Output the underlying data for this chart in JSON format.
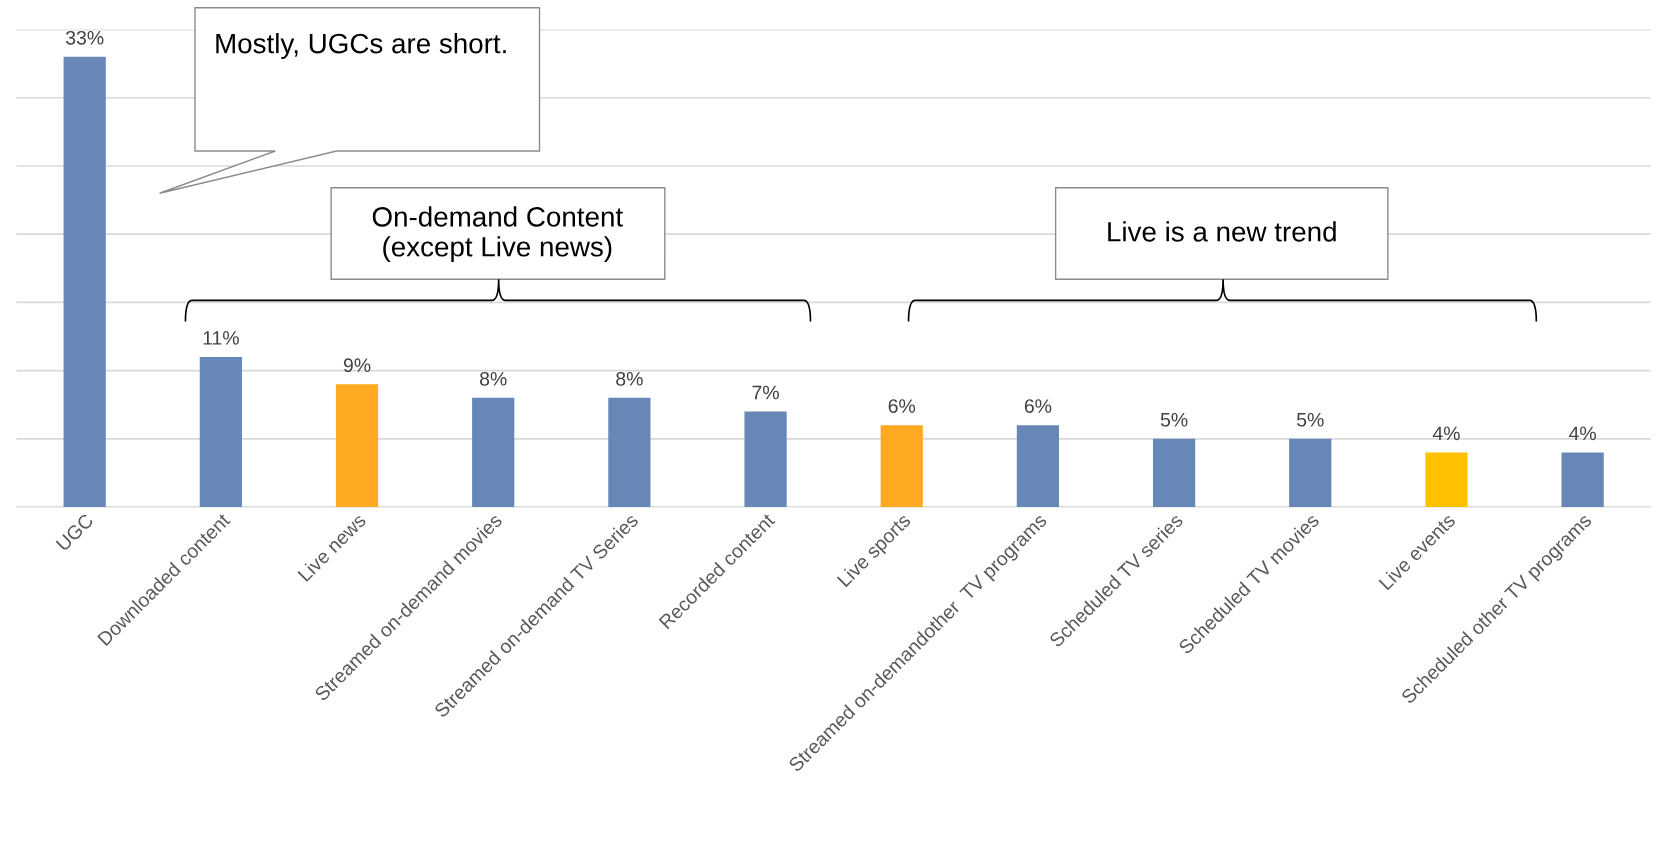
{
  "chart_data": {
    "type": "bar",
    "categories": [
      "UGC",
      "Downloaded content",
      "Live news",
      "Streamed on-demand movies",
      "Streamed on-demand TV Series",
      "Recorded content",
      "Live sports",
      "Streamed on-demandother  TV programs",
      "Scheduled TV series",
      "Scheduled TV movies",
      "Live events",
      "Scheduled other TV programs"
    ],
    "values": [
      33,
      11,
      9,
      8,
      8,
      7,
      6,
      6,
      5,
      5,
      4,
      4
    ],
    "colors": [
      "#6787b7",
      "#6787b7",
      "#ffa821",
      "#6787b7",
      "#6787b7",
      "#6787b7",
      "#ffa821",
      "#6787b7",
      "#6787b7",
      "#6787b7",
      "#ffc000",
      "#6787b7"
    ],
    "value_labels": [
      "33%",
      "11%",
      "9%",
      "8%",
      "8%",
      "7%",
      "6%",
      "6%",
      "5%",
      "5%",
      "4%",
      "4%"
    ],
    "ylim": [
      0,
      35
    ],
    "yticks": [
      {
        "value": 0,
        "label": null
      },
      {
        "value": 5,
        "label": null
      },
      {
        "value": 10,
        "label": null
      },
      {
        "value": 15,
        "label": null
      },
      {
        "value": 20,
        "label": null
      },
      {
        "value": 25,
        "label": null
      },
      {
        "value": 30,
        "label": null
      },
      {
        "value": 35,
        "label": null
      }
    ],
    "tick_labels": "x",
    "grid": "y",
    "annotations": [
      "Mostly, UGCs are short.",
      "On-demand Content\n(except Live news)",
      "Live is a new trend"
    ]
  }
}
